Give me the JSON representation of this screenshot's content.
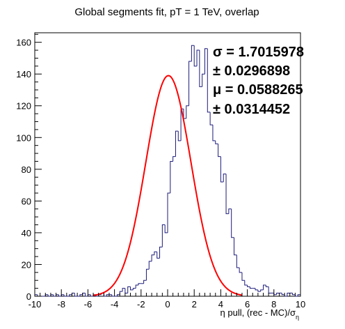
{
  "chart_data": {
    "type": "histogram",
    "title": "Global segments fit, pT = 1 TeV, overlap",
    "xlabel": "η pull, (rec - MC)/σ",
    "xlabel_subscript": "η",
    "ylabel": "",
    "xlim": [
      -10,
      10
    ],
    "ylim": [
      0,
      166
    ],
    "x_ticks": [
      -10,
      -8,
      -6,
      -4,
      -2,
      0,
      2,
      4,
      6,
      8,
      10
    ],
    "y_ticks": [
      0,
      20,
      40,
      60,
      80,
      100,
      120,
      140,
      160
    ],
    "bin_width": 0.2,
    "bin_edges_start": -10,
    "counts": [
      1,
      0,
      0,
      0,
      1,
      0,
      1,
      0,
      1,
      0,
      1,
      0,
      0,
      1,
      2,
      0,
      0,
      1,
      2,
      0,
      1,
      0,
      1,
      0,
      1,
      2,
      0,
      1,
      1,
      0,
      0,
      1,
      3,
      5,
      2,
      6,
      4,
      5,
      7,
      8,
      8,
      10,
      17,
      22,
      26,
      28,
      24,
      31,
      45,
      40,
      65,
      85,
      88,
      104,
      98,
      118,
      112,
      120,
      148,
      158,
      145,
      155,
      132,
      140,
      156,
      116,
      108,
      98,
      96,
      88,
      72,
      77,
      52,
      55,
      37,
      26,
      18,
      15,
      10,
      7,
      6,
      5,
      5,
      4,
      3,
      4,
      7,
      6,
      2,
      2,
      1,
      2,
      2,
      1,
      0,
      2,
      2,
      1,
      0,
      1
    ],
    "hist_color": "#1b1a7a",
    "fit": {
      "function": "gaussian",
      "color": "#ff0000",
      "amplitude": 139,
      "mean": 0.0588265,
      "sigma": 1.7015978
    },
    "stats": [
      {
        "symbol": "σ",
        "text": " = 1.7015978"
      },
      {
        "symbol": "±",
        "text": " 0.0296898"
      },
      {
        "symbol": "μ",
        "text": " = 0.0588265"
      },
      {
        "symbol": "±",
        "text": " 0.0314452"
      }
    ],
    "grid": false
  }
}
